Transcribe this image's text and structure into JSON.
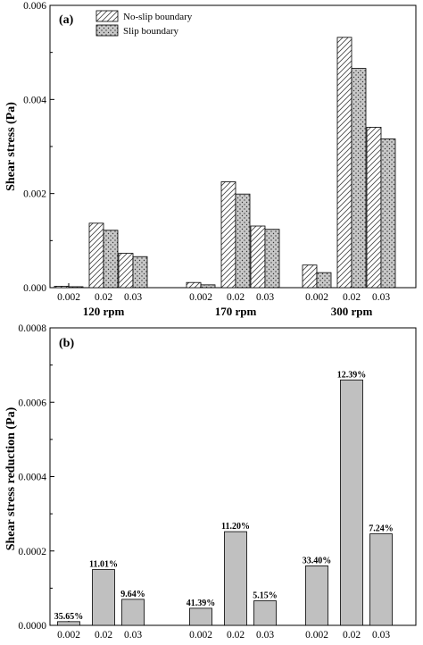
{
  "chart_data": [
    {
      "type": "bar",
      "panel_label": "(a)",
      "ylabel": "Shear stress (Pa)",
      "ylim": [
        0,
        0.006
      ],
      "yticks": [
        "0.000",
        "0.002",
        "0.004",
        "0.006"
      ],
      "ytick_values": [
        0,
        0.002,
        0.004,
        0.006
      ],
      "groups": [
        "120 rpm",
        "170 rpm",
        "300 rpm"
      ],
      "categories": [
        "0.002",
        "0.02",
        "0.03"
      ],
      "legend_position": "top-left",
      "series": [
        {
          "name": "No-slip boundary",
          "pattern": "hatch",
          "values": [
            [
              3e-05,
              0.00137,
              0.00073
            ],
            [
              0.00011,
              0.00225,
              0.00131
            ],
            [
              0.00048,
              0.00532,
              0.00341
            ]
          ]
        },
        {
          "name": "Slip boundary",
          "pattern": "dots",
          "values": [
            [
              2e-05,
              0.00122,
              0.00066
            ],
            [
              6e-05,
              0.00199,
              0.00124
            ],
            [
              0.00032,
              0.00466,
              0.00316
            ]
          ]
        }
      ]
    },
    {
      "type": "bar",
      "panel_label": "(b)",
      "ylabel": "Shear stress reduction (Pa)",
      "ylim": [
        0,
        0.0008
      ],
      "yticks": [
        "0.0000",
        "0.0002",
        "0.0004",
        "0.0006",
        "0.0008"
      ],
      "ytick_values": [
        0,
        0.0002,
        0.0004,
        0.0006,
        0.0008
      ],
      "groups": [
        "120 rpm",
        "170 rpm",
        "300 rpm"
      ],
      "categories": [
        "0.002",
        "0.02",
        "0.03"
      ],
      "bar_color": "#c0c0c0",
      "values": [
        [
          1e-05,
          0.00015,
          7e-05
        ],
        [
          4.6e-05,
          0.000252,
          6.6e-05
        ],
        [
          0.00016,
          0.00066,
          0.000246
        ]
      ],
      "data_labels": [
        [
          "35.65%",
          "11.01%",
          "9.64%"
        ],
        [
          "41.39%",
          "11.20%",
          "5.15%"
        ],
        [
          "33.40%",
          "12.39%",
          "7.24%"
        ]
      ]
    }
  ]
}
